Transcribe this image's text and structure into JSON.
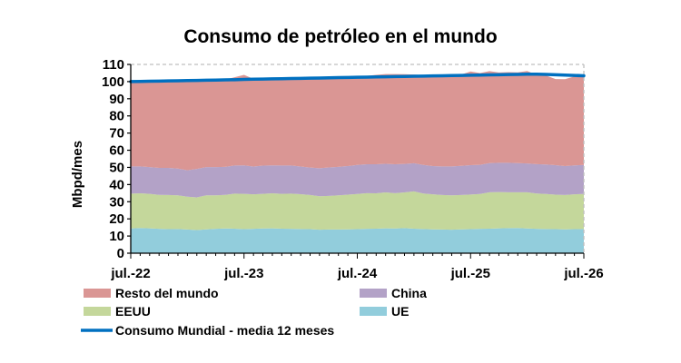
{
  "chart_data": {
    "type": "area",
    "title": "Consumo de petróleo en el mundo",
    "ylabel": "Mbpd/mes",
    "xlabel": "",
    "ylim": [
      0,
      110
    ],
    "yticks": [
      0,
      10,
      20,
      30,
      40,
      50,
      60,
      70,
      80,
      90,
      100,
      110
    ],
    "grid": "dashed border only",
    "stacked": true,
    "x_tick_labels": [
      "jul.-22",
      "jul.-23",
      "jul.-24",
      "jul.-25",
      "jul.-26"
    ],
    "x_start": "2022-07",
    "x_end": "2026-07",
    "legend_position": "bottom",
    "series": [
      {
        "name": "UE",
        "color": "#92CDDC",
        "values": [
          14.4,
          14.7,
          14.5,
          14.2,
          14.0,
          14.1,
          13.8,
          13.5,
          13.9,
          14.2,
          14.4,
          14.3,
          14.0,
          14.2,
          14.4,
          14.5,
          14.3,
          14.2,
          14.1,
          14.0,
          13.7,
          13.8,
          13.8,
          13.9,
          14.0,
          14.2,
          14.3,
          14.5,
          14.4,
          14.6,
          14.3,
          14.1,
          13.9,
          13.8,
          13.7,
          13.9,
          14.0,
          14.2,
          14.3,
          14.5,
          14.6,
          14.7,
          14.4,
          14.2,
          14.1,
          14.0,
          13.9,
          14.0,
          14.1
        ]
      },
      {
        "name": "EEUU",
        "color": "#C4D79B",
        "values": [
          20.3,
          20.2,
          20.1,
          19.8,
          19.9,
          19.6,
          19.1,
          19.0,
          19.8,
          19.5,
          19.6,
          20.4,
          20.6,
          20.1,
          20.2,
          20.4,
          20.3,
          20.5,
          20.3,
          19.9,
          19.5,
          19.6,
          19.9,
          20.2,
          20.5,
          20.8,
          20.6,
          20.9,
          20.6,
          20.8,
          21.7,
          20.7,
          20.4,
          20.1,
          20.0,
          20.0,
          20.2,
          20.3,
          21.2,
          21.1,
          20.9,
          20.8,
          21.1,
          20.6,
          20.4,
          20.1,
          20.0,
          20.3,
          20.4
        ]
      },
      {
        "name": "China",
        "color": "#B3A2C7",
        "values": [
          15.9,
          15.7,
          15.6,
          15.7,
          15.8,
          15.6,
          15.4,
          16.6,
          16.5,
          16.5,
          16.3,
          16.4,
          16.6,
          16.2,
          16.4,
          16.3,
          16.5,
          16.4,
          16.1,
          16.0,
          16.3,
          16.6,
          16.6,
          16.7,
          16.9,
          16.8,
          16.9,
          16.7,
          16.8,
          16.6,
          16.4,
          16.6,
          16.5,
          16.7,
          16.9,
          17.0,
          17.1,
          17.0,
          17.0,
          17.1,
          17.2,
          17.0,
          16.8,
          17.1,
          17.2,
          17.2,
          16.9,
          16.9,
          16.9
        ]
      },
      {
        "name": "Resto del mundo",
        "color": "#DA9694",
        "values": [
          49.6,
          50.4,
          50.3,
          50.9,
          51.1,
          51.6,
          52.9,
          51.6,
          51.0,
          50.9,
          50.9,
          51.4,
          52.7,
          51.1,
          50.5,
          50.3,
          50.7,
          50.6,
          51.0,
          51.9,
          52.0,
          51.7,
          51.5,
          51.3,
          51.2,
          51.5,
          52.1,
          52.3,
          52.6,
          52.3,
          51.7,
          52.3,
          53.0,
          53.3,
          53.4,
          53.2,
          54.6,
          53.5,
          53.6,
          52.6,
          52.8,
          52.9,
          53.9,
          52.0,
          51.8,
          50.2,
          50.6,
          51.8,
          51.5
        ]
      },
      {
        "name": "Consumo Mundial - media 12 meses",
        "type": "line",
        "color": "#0070C0",
        "values": [
          100.0,
          100.1,
          100.2,
          100.3,
          100.4,
          100.5,
          100.6,
          100.7,
          100.8,
          100.9,
          101.0,
          101.1,
          101.3,
          101.4,
          101.5,
          101.6,
          101.7,
          101.8,
          101.9,
          102.0,
          102.1,
          102.2,
          102.3,
          102.4,
          102.5,
          102.6,
          102.7,
          102.8,
          102.9,
          103.0,
          103.1,
          103.2,
          103.3,
          103.4,
          103.5,
          103.6,
          103.7,
          103.8,
          103.9,
          104.0,
          104.1,
          104.2,
          104.3,
          104.3,
          104.2,
          104.0,
          103.8,
          103.6,
          103.4
        ]
      }
    ]
  },
  "legend": [
    {
      "key": "rest",
      "label": "Resto del mundo",
      "color": "#DA9694",
      "kind": "area"
    },
    {
      "key": "china",
      "label": "China",
      "color": "#B3A2C7",
      "kind": "area"
    },
    {
      "key": "us",
      "label": "EEUU",
      "color": "#C4D79B",
      "kind": "area"
    },
    {
      "key": "eu",
      "label": "UE",
      "color": "#92CDDC",
      "kind": "area"
    },
    {
      "key": "world",
      "label": "Consumo Mundial - media 12 meses",
      "color": "#0070C0",
      "kind": "line"
    }
  ]
}
